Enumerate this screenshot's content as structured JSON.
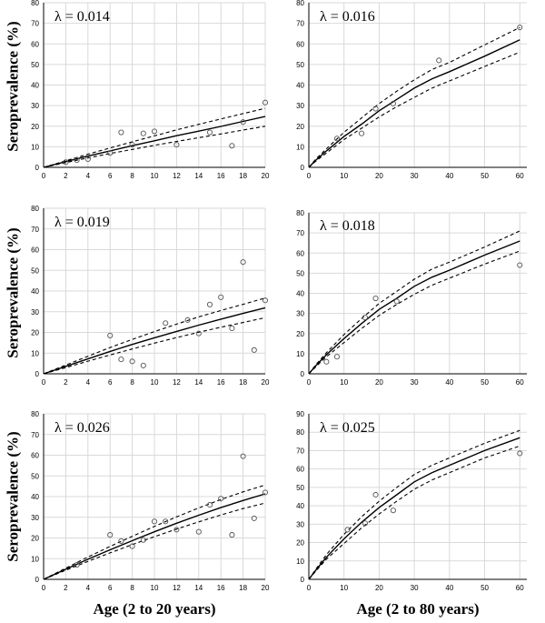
{
  "labels": {
    "ylabel": "Seroprevalence (%)",
    "xlabel_left": "Age (2 to 20 years)",
    "xlabel_right": "Age (2 to 80 years)"
  },
  "colors": {
    "line": "#000000",
    "grid": "#d9d9d9",
    "axis": "#000000",
    "marker": "#555555"
  },
  "chart_data": [
    {
      "type": "line",
      "panel": "row1-left",
      "title": "λ = 0.014",
      "xlim": [
        0,
        20
      ],
      "xticks": [
        0,
        2,
        4,
        6,
        8,
        10,
        12,
        14,
        16,
        18,
        20
      ],
      "ylim": [
        0,
        80
      ],
      "yticks": [
        0,
        10,
        20,
        30,
        40,
        50,
        60,
        70,
        80
      ],
      "grid": true,
      "series": [
        {
          "style": "solid",
          "x": [
            0,
            2,
            4,
            6,
            8,
            10,
            12,
            14,
            16,
            18,
            20
          ],
          "y": [
            0,
            2.8,
            5.5,
            8.0,
            10.5,
            12.9,
            15.4,
            17.6,
            19.9,
            22.3,
            24.7
          ]
        },
        {
          "style": "dashed",
          "x": [
            0,
            2,
            4,
            6,
            8,
            10,
            12,
            14,
            16,
            18,
            20
          ],
          "y": [
            0,
            3.2,
            6.4,
            9.4,
            12.4,
            15.3,
            18.2,
            20.9,
            23.5,
            26.1,
            28.7
          ]
        },
        {
          "style": "dashed",
          "x": [
            0,
            2,
            4,
            6,
            8,
            10,
            12,
            14,
            16,
            18,
            20
          ],
          "y": [
            0,
            2.3,
            4.6,
            6.7,
            8.7,
            10.7,
            12.6,
            14.4,
            16.2,
            18.1,
            20.0
          ]
        },
        {
          "style": "points",
          "x": [
            2,
            3,
            4,
            6,
            7,
            8,
            9,
            10,
            12,
            15,
            17,
            18,
            20
          ],
          "y": [
            2.5,
            3.5,
            4,
            7,
            17,
            11,
            16.5,
            17.5,
            11,
            17,
            10.5,
            22,
            31.5
          ]
        }
      ]
    },
    {
      "type": "line",
      "panel": "row1-right",
      "title": "λ = 0.016",
      "xlim": [
        0,
        62
      ],
      "xticks": [
        0,
        10,
        20,
        30,
        40,
        50,
        60
      ],
      "ylim": [
        0,
        80
      ],
      "yticks": [
        0,
        10,
        20,
        30,
        40,
        50,
        60,
        70,
        80
      ],
      "grid": true,
      "series": [
        {
          "style": "solid",
          "x": [
            0,
            2,
            5,
            10,
            15,
            20,
            25,
            30,
            35,
            40,
            50,
            60
          ],
          "y": [
            0,
            3.5,
            8,
            15,
            21,
            27.5,
            33,
            38.5,
            43,
            46.5,
            54,
            62
          ]
        },
        {
          "style": "dashed",
          "x": [
            0,
            2,
            5,
            10,
            15,
            20,
            25,
            30,
            35,
            40,
            50,
            60
          ],
          "y": [
            0,
            4,
            9,
            17,
            24,
            31,
            37,
            42.5,
            47.5,
            51,
            59.5,
            68
          ]
        },
        {
          "style": "dashed",
          "x": [
            0,
            2,
            5,
            10,
            15,
            20,
            25,
            30,
            35,
            40,
            50,
            60
          ],
          "y": [
            0,
            3,
            7,
            13.5,
            19,
            24.5,
            29.5,
            34,
            38.5,
            42,
            49,
            56
          ]
        },
        {
          "style": "points",
          "x": [
            8,
            15,
            19,
            24,
            37,
            60
          ],
          "y": [
            14,
            16.5,
            28.5,
            31,
            52,
            68
          ]
        }
      ]
    },
    {
      "type": "line",
      "panel": "row2-left",
      "title": "λ = 0.019",
      "xlim": [
        0,
        20
      ],
      "xticks": [
        0,
        2,
        4,
        6,
        8,
        10,
        12,
        14,
        16,
        18,
        20
      ],
      "ylim": [
        0,
        80
      ],
      "yticks": [
        0,
        10,
        20,
        30,
        40,
        50,
        60,
        70,
        80
      ],
      "grid": true,
      "series": [
        {
          "style": "solid",
          "x": [
            0,
            2,
            4,
            6,
            8,
            10,
            12,
            14,
            16,
            18,
            20
          ],
          "y": [
            0,
            3.6,
            7.2,
            10.8,
            14.2,
            17.4,
            20.5,
            23.5,
            26.4,
            29.2,
            31.9
          ]
        },
        {
          "style": "dashed",
          "x": [
            0,
            2,
            4,
            6,
            8,
            10,
            12,
            14,
            16,
            18,
            20
          ],
          "y": [
            0,
            4.2,
            8.5,
            12.7,
            16.6,
            20.4,
            24.0,
            27.5,
            30.6,
            33.6,
            36.6
          ]
        },
        {
          "style": "dashed",
          "x": [
            0,
            2,
            4,
            6,
            8,
            10,
            12,
            14,
            16,
            18,
            20
          ],
          "y": [
            0,
            3.0,
            6.1,
            9.1,
            12.0,
            14.8,
            17.5,
            20.1,
            22.5,
            24.8,
            27.1
          ]
        },
        {
          "style": "points",
          "x": [
            6,
            7,
            8,
            9,
            11,
            13,
            14,
            15,
            16,
            17,
            18,
            19,
            20
          ],
          "y": [
            18.5,
            7,
            6,
            4,
            24.5,
            26,
            19.5,
            33.5,
            37,
            22,
            54,
            11.5,
            35.5
          ]
        }
      ]
    },
    {
      "type": "line",
      "panel": "row2-right",
      "title": "λ = 0.018",
      "xlim": [
        0,
        62
      ],
      "xticks": [
        0,
        10,
        20,
        30,
        40,
        50,
        60
      ],
      "ylim": [
        0,
        80
      ],
      "yticks": [
        0,
        10,
        20,
        30,
        40,
        50,
        60,
        70,
        80
      ],
      "grid": true,
      "series": [
        {
          "style": "solid",
          "x": [
            0,
            2,
            5,
            10,
            15,
            20,
            25,
            30,
            35,
            40,
            50,
            60
          ],
          "y": [
            0,
            4,
            9.5,
            17.5,
            25,
            32,
            37.5,
            43.5,
            48,
            51.5,
            59,
            66
          ]
        },
        {
          "style": "dashed",
          "x": [
            0,
            2,
            5,
            10,
            15,
            20,
            25,
            30,
            35,
            40,
            50,
            60
          ],
          "y": [
            0,
            4.5,
            10.5,
            19.5,
            27.5,
            35,
            41,
            47,
            52,
            55.5,
            63,
            71
          ]
        },
        {
          "style": "dashed",
          "x": [
            0,
            2,
            5,
            10,
            15,
            20,
            25,
            30,
            35,
            40,
            50,
            60
          ],
          "y": [
            0,
            3.5,
            8.5,
            15.5,
            22.5,
            29,
            34.5,
            39.5,
            44,
            47.5,
            54.5,
            61
          ]
        },
        {
          "style": "points",
          "x": [
            5,
            8,
            16,
            19,
            25,
            60
          ],
          "y": [
            6,
            8.5,
            28,
            37.5,
            36,
            54
          ]
        }
      ]
    },
    {
      "type": "line",
      "panel": "row3-left",
      "title": "λ = 0.026",
      "xlim": [
        0,
        20
      ],
      "xticks": [
        0,
        2,
        4,
        6,
        8,
        10,
        12,
        14,
        16,
        18,
        20
      ],
      "ylim": [
        0,
        80
      ],
      "yticks": [
        0,
        10,
        20,
        30,
        40,
        50,
        60,
        70,
        80
      ],
      "grid": true,
      "series": [
        {
          "style": "solid",
          "x": [
            0,
            2,
            4,
            6,
            8,
            10,
            12,
            14,
            16,
            18,
            20
          ],
          "y": [
            0,
            4.9,
            9.7,
            14.3,
            18.7,
            23.0,
            27.1,
            31.0,
            34.7,
            38.1,
            41.3
          ]
        },
        {
          "style": "dashed",
          "x": [
            0,
            2,
            4,
            6,
            8,
            10,
            12,
            14,
            16,
            18,
            20
          ],
          "y": [
            0,
            5.4,
            10.8,
            15.9,
            20.8,
            25.6,
            30.2,
            34.5,
            38.6,
            42.3,
            45.6
          ]
        },
        {
          "style": "dashed",
          "x": [
            0,
            2,
            4,
            6,
            8,
            10,
            12,
            14,
            16,
            18,
            20
          ],
          "y": [
            0,
            4.4,
            8.7,
            12.8,
            16.8,
            20.6,
            24.3,
            27.8,
            31.1,
            34.2,
            36.9
          ]
        },
        {
          "style": "points",
          "x": [
            3,
            6,
            7,
            8,
            9,
            10,
            11,
            12,
            14,
            15,
            16,
            17,
            18,
            19,
            20
          ],
          "y": [
            7,
            21.5,
            18.5,
            16,
            19,
            28,
            28,
            24,
            23,
            36,
            39,
            21.5,
            59.5,
            29.5,
            42
          ]
        }
      ]
    },
    {
      "type": "line",
      "panel": "row3-right",
      "title": "λ = 0.025",
      "xlim": [
        0,
        62
      ],
      "xticks": [
        0,
        10,
        20,
        30,
        40,
        50,
        60
      ],
      "ylim": [
        0,
        90
      ],
      "yticks": [
        0,
        10,
        20,
        30,
        40,
        50,
        60,
        70,
        80,
        90
      ],
      "grid": true,
      "series": [
        {
          "style": "solid",
          "x": [
            0,
            2,
            5,
            10,
            15,
            20,
            25,
            30,
            35,
            40,
            50,
            60
          ],
          "y": [
            0,
            5,
            12,
            22,
            31,
            39,
            46,
            53,
            58,
            62,
            70,
            77
          ]
        },
        {
          "style": "dashed",
          "x": [
            0,
            2,
            5,
            10,
            15,
            20,
            25,
            30,
            35,
            40,
            50,
            60
          ],
          "y": [
            0,
            5.5,
            13.5,
            24.5,
            34,
            42.5,
            50,
            57,
            62,
            66,
            74,
            81
          ]
        },
        {
          "style": "dashed",
          "x": [
            0,
            2,
            5,
            10,
            15,
            20,
            25,
            30,
            35,
            40,
            50,
            60
          ],
          "y": [
            0,
            4.5,
            11,
            19.5,
            28,
            35.5,
            42.5,
            49,
            54,
            58,
            66,
            72.5
          ]
        },
        {
          "style": "points",
          "x": [
            11,
            16,
            19,
            24,
            60
          ],
          "y": [
            27,
            30.5,
            46,
            37.5,
            68.5
          ]
        }
      ]
    }
  ]
}
